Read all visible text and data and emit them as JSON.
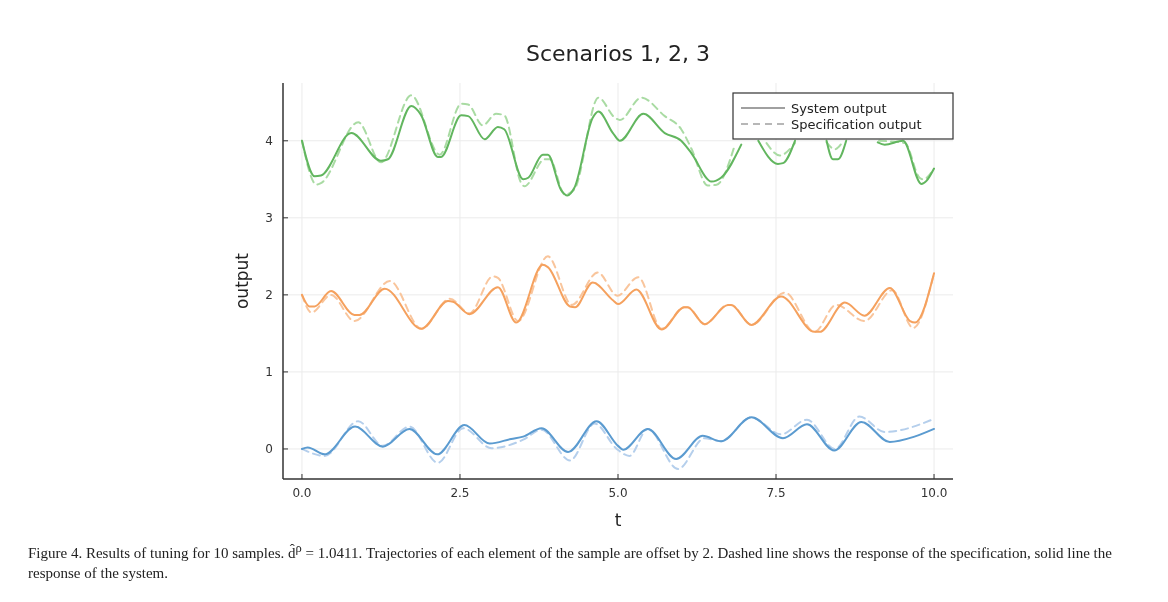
{
  "chart_data": {
    "type": "line",
    "title": "Scenarios 1, 2, 3",
    "xlabel": "t",
    "ylabel": "output",
    "xlim": [
      -0.3,
      10.3
    ],
    "ylim": [
      -0.39,
      4.75
    ],
    "xticks": [
      {
        "value": 0,
        "label": "0.0"
      },
      {
        "value": 2.5,
        "label": "2.5"
      },
      {
        "value": 5,
        "label": "5.0"
      },
      {
        "value": 7.5,
        "label": "7.5"
      },
      {
        "value": 10,
        "label": "10.0"
      }
    ],
    "yticks": [
      0,
      1,
      2,
      3,
      4
    ],
    "grid": true,
    "legend": "top right",
    "marker": "none",
    "annotations": [
      "Figure 4. Results of tuning for 10 samples. d̂$^{ρ}$ = 1.0411. Trajectories of each element of the sample are offset by 2. Dashed line shows the response of the specification, solid line the response of the system."
    ],
    "series": [
      {
        "name": "System output",
        "color": "#808080",
        "line_style": "solid"
      },
      {
        "name": "Specification output",
        "color": "#a0a0a0",
        "line_style": "dashed"
      },
      {
        "color": "#b5cfec",
        "line_style": "dashed",
        "x": [
          0,
          0.36,
          0.89,
          1.28,
          1.7,
          2.15,
          2.55,
          3.0,
          3.5,
          3.79,
          4.24,
          4.63,
          4.98,
          5.18,
          5.47,
          5.95,
          6.37,
          6.63,
          7.11,
          7.58,
          7.99,
          8.43,
          8.82,
          9.22,
          10
        ],
        "values": [
          0,
          -0.09,
          0.36,
          0.04,
          0.29,
          -0.18,
          0.27,
          0.01,
          0.12,
          0.25,
          -0.15,
          0.33,
          0.0,
          -0.09,
          0.26,
          -0.26,
          0.14,
          0.1,
          0.41,
          0.19,
          0.38,
          0.0,
          0.42,
          0.22,
          0.39
        ]
      },
      {
        "color": "#f9c59c",
        "line_style": "dashed",
        "x": [
          0,
          0.15,
          0.46,
          0.83,
          1.39,
          1.89,
          2.34,
          2.65,
          3.02,
          3.1,
          3.42,
          3.89,
          4.27,
          4.68,
          4.99,
          5.32,
          5.69,
          6.05,
          6.1,
          6.37,
          6.74,
          6.79,
          7.11,
          7.64,
          8.11,
          8.45,
          8.9,
          9.34,
          9.67,
          10
        ],
        "values": [
          2.0,
          1.77,
          2.0,
          1.66,
          2.18,
          1.56,
          1.95,
          1.76,
          2.24,
          2.22,
          1.66,
          2.5,
          1.87,
          2.29,
          1.99,
          2.23,
          1.56,
          1.84,
          1.84,
          1.62,
          1.87,
          1.87,
          1.61,
          2.03,
          1.52,
          1.87,
          1.66,
          2.06,
          1.57,
          2.28
        ]
      },
      {
        "color": "#a9dba3",
        "line_style": "dashed",
        "x": [
          0,
          0.23,
          0.3,
          0.89,
          1.25,
          1.73,
          2.18,
          2.52,
          2.63,
          2.86,
          3.07,
          3.2,
          3.47,
          3.52,
          3.84,
          3.92,
          4.16,
          4.31,
          4.69,
          4.95,
          5.03,
          5.37,
          5.74,
          6.0,
          6.16,
          6.42,
          6.56,
          6.85,
          7.1,
          7.35,
          7.56,
          7.8,
          8.0,
          8.3,
          8.43,
          8.55,
          8.85,
          9.13,
          9.54,
          9.77,
          9.83,
          10
        ],
        "values": [
          4.0,
          3.43,
          3.45,
          4.24,
          3.72,
          4.59,
          3.82,
          4.48,
          4.47,
          4.2,
          4.35,
          4.33,
          3.45,
          3.41,
          3.76,
          3.76,
          3.3,
          3.37,
          4.56,
          4.3,
          4.27,
          4.56,
          4.32,
          4.15,
          3.9,
          3.42,
          3.43,
          3.95,
          null,
          3.97,
          3.81,
          3.97,
          null,
          3.98,
          3.89,
          3.98,
          null,
          4.0,
          3.97,
          3.52,
          3.5,
          3.64
        ]
      },
      {
        "color": "#5b9bd0",
        "line_style": "solid",
        "x": [
          0,
          0.09,
          0.36,
          0.84,
          1.28,
          1.7,
          2.14,
          2.57,
          2.97,
          3.31,
          3.5,
          3.79,
          4.21,
          4.66,
          5.0,
          5.08,
          5.47,
          5.92,
          6.34,
          6.63,
          7.11,
          7.61,
          7.99,
          8.42,
          8.85,
          9.3,
          9.69,
          10
        ],
        "values": [
          0,
          0.02,
          -0.07,
          0.29,
          0.03,
          0.26,
          -0.07,
          0.31,
          0.07,
          0.13,
          0.16,
          0.27,
          -0.04,
          0.36,
          0.04,
          -0.01,
          0.26,
          -0.13,
          0.17,
          0.1,
          0.41,
          0.14,
          0.32,
          -0.02,
          0.35,
          0.09,
          0.16,
          0.26
        ]
      },
      {
        "color": "#f5a15e",
        "line_style": "solid",
        "x": [
          0,
          0.12,
          0.2,
          0.46,
          0.83,
          0.91,
          1.31,
          1.89,
          2.31,
          2.39,
          2.65,
          3.1,
          3.39,
          3.81,
          3.89,
          4.24,
          4.32,
          4.6,
          4.92,
          5.0,
          5.29,
          5.69,
          6.05,
          6.1,
          6.37,
          6.74,
          6.79,
          7.11,
          7.58,
          8.11,
          8.19,
          8.59,
          8.9,
          9.3,
          9.62,
          9.7,
          10
        ],
        "values": [
          2.0,
          1.85,
          1.85,
          2.05,
          1.74,
          1.74,
          2.08,
          1.56,
          1.92,
          1.91,
          1.75,
          2.1,
          1.64,
          2.39,
          2.36,
          1.85,
          1.84,
          2.16,
          1.93,
          1.88,
          2.07,
          1.55,
          1.84,
          1.84,
          1.62,
          1.87,
          1.87,
          1.61,
          1.98,
          1.52,
          1.52,
          1.9,
          1.73,
          2.09,
          1.66,
          1.64,
          2.28
        ]
      },
      {
        "color": "#62b65f",
        "line_style": "solid",
        "x": [
          0,
          0.2,
          0.3,
          0.78,
          1.25,
          1.36,
          1.73,
          1.88,
          2.15,
          2.2,
          2.52,
          2.63,
          2.89,
          3.1,
          3.2,
          3.5,
          3.58,
          3.81,
          3.89,
          4.1,
          4.2,
          4.31,
          4.6,
          4.69,
          4.92,
          5.03,
          5.4,
          5.74,
          6.0,
          6.16,
          6.48,
          6.63,
          6.95,
          7.08,
          7.22,
          7.53,
          7.61,
          7.8,
          8.05,
          8.3,
          8.4,
          8.48,
          8.61,
          8.85,
          9.11,
          9.22,
          9.51,
          9.8,
          9.88,
          10
        ],
        "values": [
          4.0,
          3.54,
          3.55,
          4.1,
          3.74,
          3.76,
          4.45,
          4.34,
          3.79,
          3.79,
          4.33,
          4.32,
          4.02,
          4.18,
          4.15,
          3.5,
          3.52,
          3.82,
          3.82,
          3.36,
          3.29,
          3.39,
          4.3,
          4.38,
          4.1,
          4.0,
          4.35,
          4.1,
          4.0,
          3.84,
          3.47,
          3.52,
          3.95,
          null,
          4.0,
          3.7,
          3.71,
          4.0,
          null,
          4.0,
          3.76,
          3.76,
          4.0,
          null,
          3.98,
          3.95,
          4.0,
          3.44,
          3.48,
          3.64
        ]
      }
    ]
  }
}
